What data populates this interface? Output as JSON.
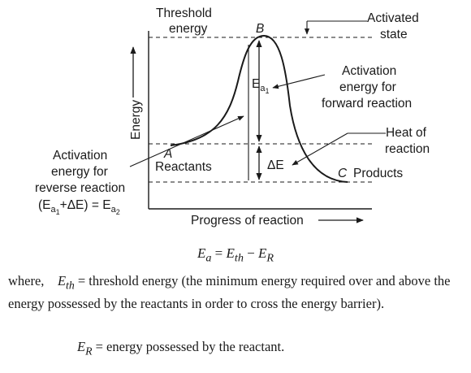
{
  "diagram": {
    "threshold_energy": [
      "Threshold",
      "energy"
    ],
    "point_b": "B",
    "activated_state": [
      "Activated",
      "state"
    ],
    "energy_axis": "Energy",
    "ea1_main": "E",
    "ea1_sub": "a",
    "ea1_subsub": "1",
    "forward_activation": [
      "Activation",
      "energy for",
      "forward reaction"
    ],
    "heat_of_reaction": [
      "Heat of",
      "reaction"
    ],
    "point_a": "A",
    "reactants": "Reactants",
    "delta_e": "ΔE",
    "point_c": "C",
    "products": "Products",
    "reverse_activation": [
      "Activation",
      "energy for",
      "reverse reaction"
    ],
    "reverse_formula": {
      "open": "(E",
      "sub1": "a",
      "subsub1": "1",
      "mid": "+ΔE) = E",
      "sub2": "a",
      "subsub2": "2"
    },
    "x_axis": "Progress of reaction"
  },
  "formula": {
    "lhs": "E",
    "lhs_sub": "a",
    "eq": " = ",
    "t1": "E",
    "t1_sub": "th",
    "minus": " − ",
    "t2": "E",
    "t2_sub": "R"
  },
  "where": {
    "prefix": "where,",
    "sym": "E",
    "sym_sub": "th",
    "text": " = threshold energy (the minimum energy required over and above the energy possessed by the reactants in order to cross the energy barrier)."
  },
  "er": {
    "sym": "E",
    "sym_sub": "R",
    "text": " = energy possessed by the reactant."
  },
  "colors": {
    "ink": "#1a1a1a",
    "background": "#ffffff"
  }
}
